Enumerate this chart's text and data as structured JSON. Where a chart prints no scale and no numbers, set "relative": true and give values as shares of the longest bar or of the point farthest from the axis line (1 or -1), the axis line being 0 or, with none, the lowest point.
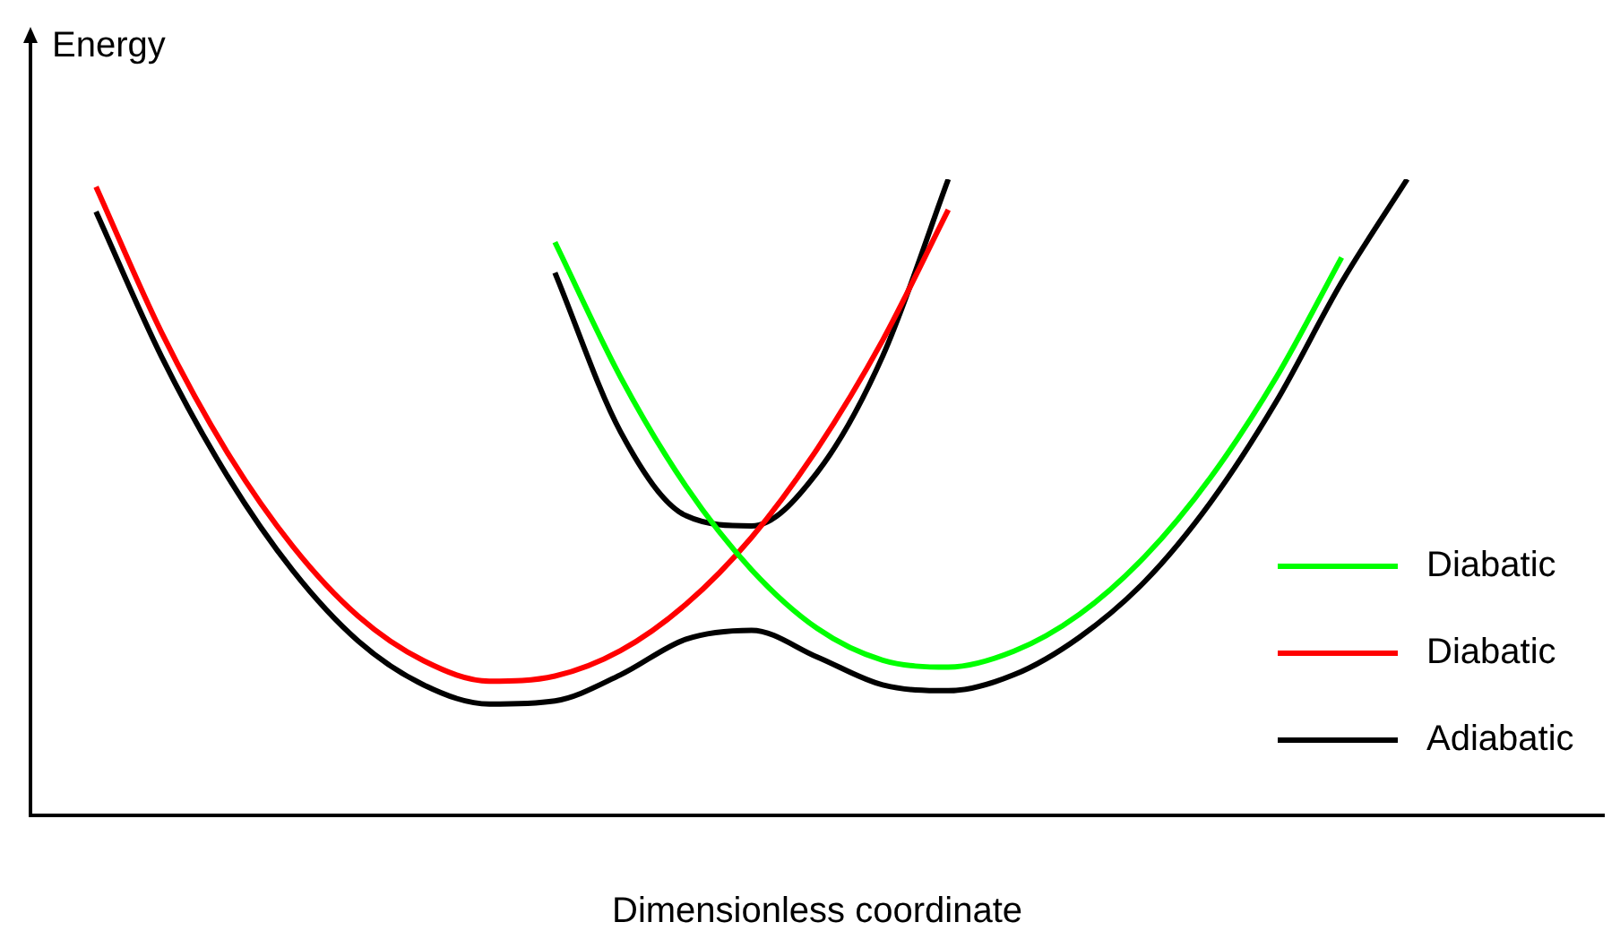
{
  "chart_data": {
    "type": "line",
    "relative": true,
    "xlabel": "Dimensionless coordinate",
    "ylabel": "Energy",
    "legend": "bottom right",
    "marker": "none",
    "grid": false,
    "categories": [
      null,
      null,
      null,
      null,
      null,
      null,
      null,
      null,
      null,
      null,
      null,
      null,
      null,
      null,
      null,
      null,
      null,
      null,
      null,
      null,
      null,
      null,
      null,
      null,
      null
    ],
    "series": [
      {
        "name": "Diabatic",
        "color": "#00ff00",
        "values": [
          null,
          null,
          null,
          null,
          null,
          null,
          null,
          null,
          0.901,
          0.689,
          0.517,
          0.386,
          0.294,
          0.244,
          0.233,
          0.258,
          0.316,
          0.407,
          0.531,
          0.688,
          0.877,
          null,
          null,
          null,
          null
        ]
      },
      {
        "name": "Diabatic",
        "color": "#ff0000",
        "values": [
          null,
          0.988,
          0.759,
          0.571,
          0.423,
          0.313,
          0.243,
          0.211,
          0.219,
          0.259,
          0.332,
          0.437,
          0.576,
          0.747,
          0.952,
          null,
          null,
          null,
          null,
          null,
          null,
          null,
          null,
          null,
          null
        ]
      },
      {
        "name": "Adiabatic",
        "color": "#000000",
        "values": [
          null,
          0.949,
          0.721,
          0.534,
          0.385,
          0.274,
          0.205,
          0.175,
          0.18,
          0.221,
          0.277,
          0.291,
          0.249,
          0.205,
          0.196,
          0.221,
          0.28,
          0.368,
          0.492,
          0.65,
          0.838,
          1.0,
          null,
          null,
          null
        ]
      },
      {
        "color": "#000000",
        "values": [
          null,
          null,
          null,
          null,
          null,
          null,
          null,
          null,
          0.853,
          0.603,
          0.471,
          0.455,
          0.539,
          0.722,
          1.0,
          null,
          null,
          null,
          null,
          null,
          null,
          null,
          null,
          null,
          null
        ]
      }
    ]
  }
}
